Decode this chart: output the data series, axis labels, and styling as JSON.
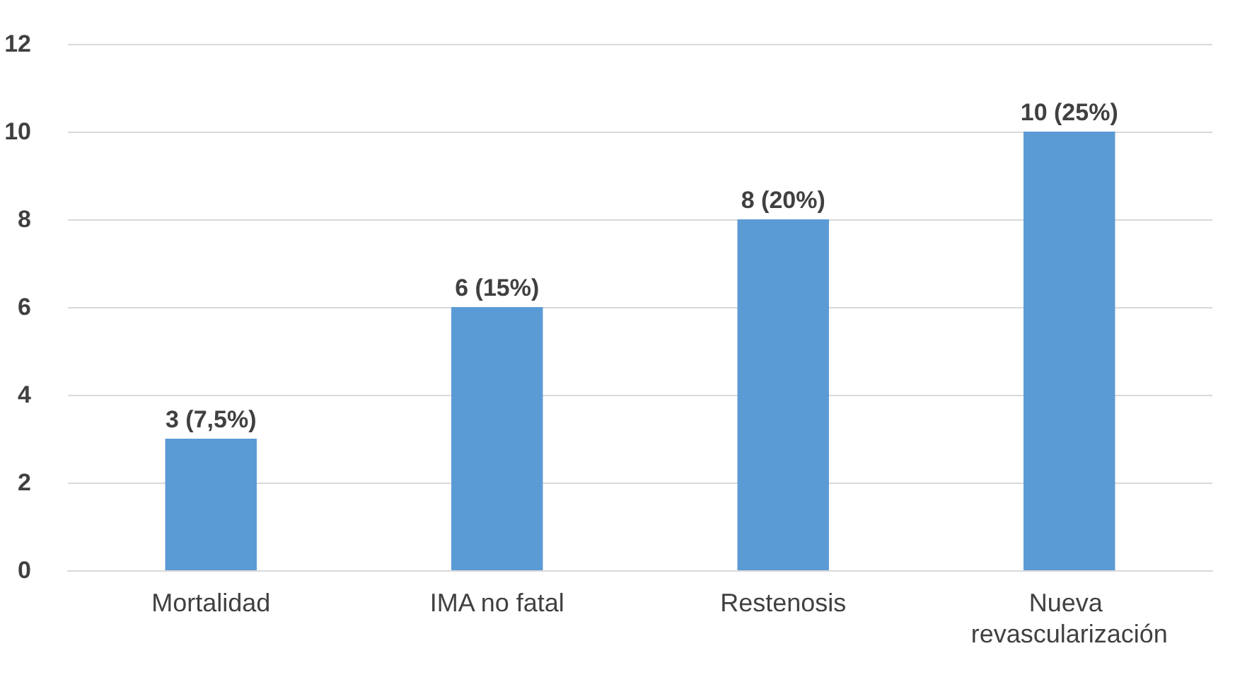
{
  "chart_data": {
    "type": "bar",
    "categories": [
      "Mortalidad",
      "IMA no fatal",
      "Restenosis",
      "Nueva revascularización"
    ],
    "values": [
      3,
      6,
      8,
      10
    ],
    "value_labels": [
      "3 (7,5%)",
      "6 (15%)",
      "8 (20%)",
      "10 (25%)"
    ],
    "color": "#5b9bd5",
    "ylim": [
      0,
      12
    ],
    "yticks": [
      0,
      2,
      4,
      6,
      8,
      10,
      12
    ],
    "grid": "y"
  }
}
